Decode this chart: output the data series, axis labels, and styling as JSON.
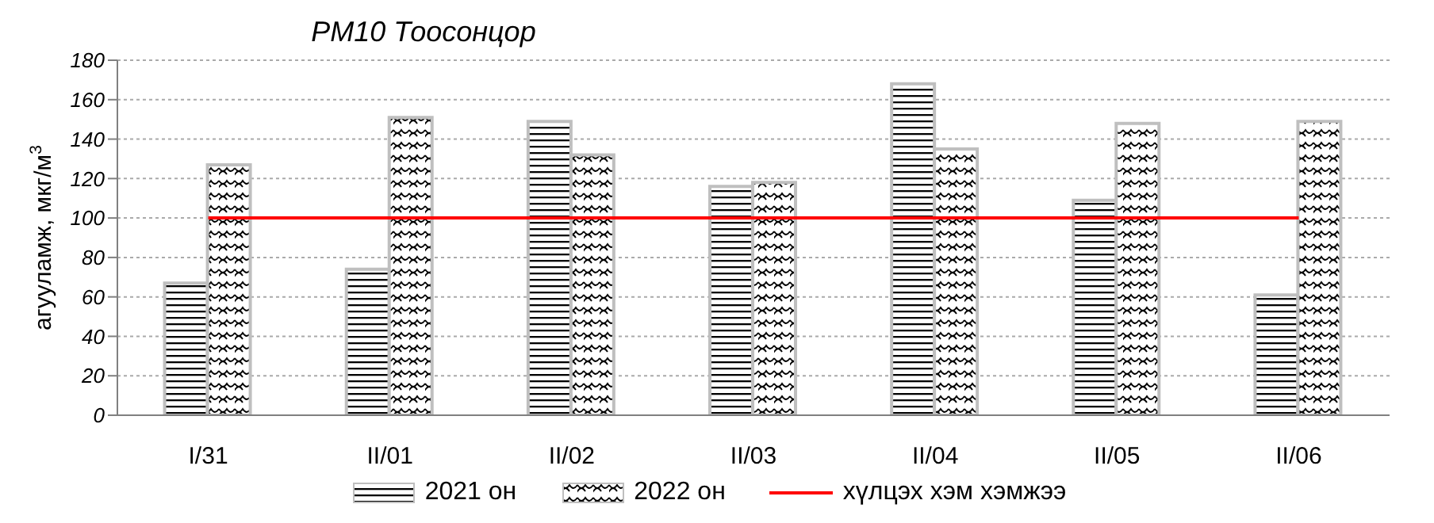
{
  "chart_data": {
    "type": "bar",
    "title": "PM10 Тоосонцор",
    "ylabel": "агууламж, мкг/м$^{3}$",
    "categories": [
      "I/31",
      "II/01",
      "II/02",
      "II/03",
      "II/04",
      "II/05",
      "II/06"
    ],
    "series": [
      {
        "name": "2021 он",
        "color": "#bfbfbf",
        "values": [
          67,
          74,
          149,
          116,
          168,
          109,
          61
        ]
      },
      {
        "name": "2022 он",
        "color": "#bfbfbf",
        "values": [
          127,
          151,
          132,
          118,
          135,
          148,
          149
        ]
      },
      {
        "name": "хүлцэх хэм хэмжээ",
        "type": "line",
        "color": "#ff0000",
        "values": [
          100,
          100,
          100,
          100,
          100,
          100,
          100
        ]
      }
    ],
    "ylim": [
      0,
      180
    ],
    "yticks": [
      0,
      20,
      40,
      60,
      80,
      100,
      120,
      140,
      160,
      180
    ],
    "grid": "y",
    "legend": "bottom",
    "marker": "none",
    "line_style": "solid"
  }
}
